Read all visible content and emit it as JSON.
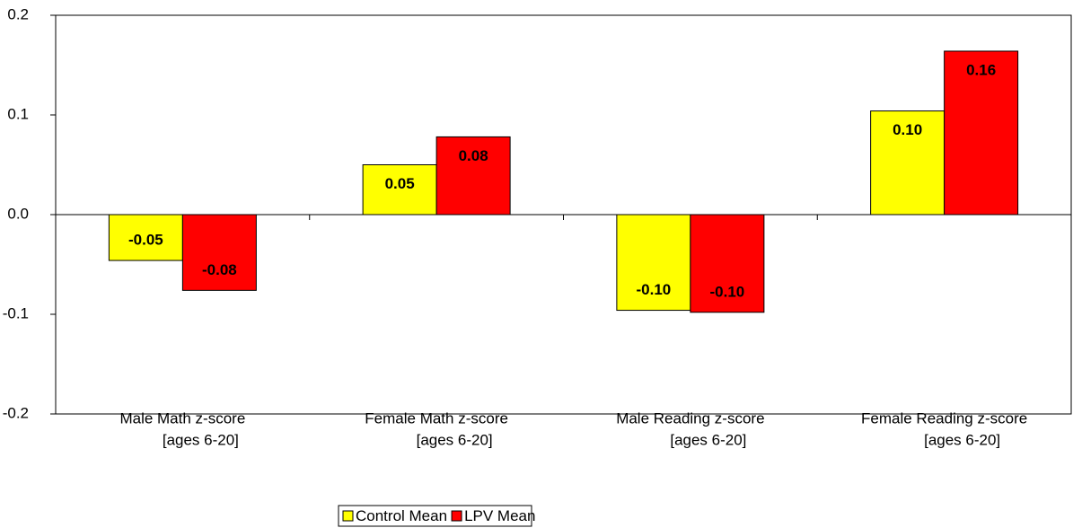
{
  "chart_data": {
    "type": "bar",
    "categories": [
      [
        "Male Math z-score",
        "[ages 6-20]"
      ],
      [
        "Female Math z-score",
        "[ages 6-20]"
      ],
      [
        "Male Reading z-score",
        "[ages 6-20]"
      ],
      [
        "Female Reading z-score",
        "[ages 6-20]"
      ]
    ],
    "series": [
      {
        "name": "Control Mean",
        "color": "#ffff00",
        "values": [
          -0.046,
          0.05,
          -0.096,
          0.104
        ],
        "value_labels": [
          "-0.05",
          "0.05",
          "-0.10",
          "0.10"
        ]
      },
      {
        "name": "LPV Mean",
        "color": "#ff0000",
        "values": [
          -0.076,
          0.078,
          -0.098,
          0.164
        ],
        "value_labels": [
          "-0.08",
          "0.08",
          "-0.10",
          "0.16"
        ]
      }
    ],
    "ylim": [
      -0.2,
      0.2
    ],
    "yticks": [
      -0.2,
      -0.1,
      {
        "value": 0,
        "label": "0.0"
      },
      0.1,
      0.2
    ],
    "legend": "bottom"
  }
}
